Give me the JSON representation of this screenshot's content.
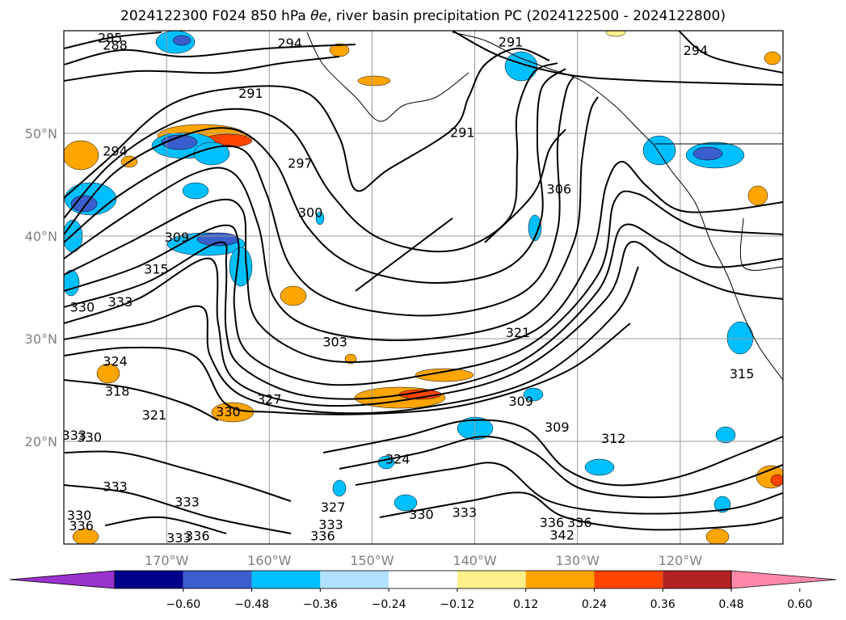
{
  "title_prefix": "2024122300 F024 850 hPa ",
  "title_symbol": "θe",
  "title_suffix": ", river basin precipitation PC (2024122500 - 2024122800)",
  "chart_data": {
    "type": "contour map",
    "field_contoured": "850 hPa theta-e (K)",
    "field_shaded": "river basin precipitation PC",
    "lat_ticks": [
      "50°N",
      "40°N",
      "30°N",
      "20°N"
    ],
    "lon_ticks": [
      "170°W",
      "160°W",
      "150°W",
      "140°W",
      "130°W",
      "120°W"
    ],
    "lat_range": [
      10,
      60
    ],
    "lon_range": [
      -180,
      -110
    ],
    "grid": true,
    "contour_labels": [
      {
        "value": "285",
        "lon": -175.5,
        "lat": 59.2
      },
      {
        "value": "288",
        "lon": -175.0,
        "lat": 58.5
      },
      {
        "value": "294",
        "lon": -158.0,
        "lat": 58.7
      },
      {
        "value": "291",
        "lon": -136.5,
        "lat": 58.8
      },
      {
        "value": "294",
        "lon": -118.5,
        "lat": 58.0
      },
      {
        "value": "291",
        "lon": -161.8,
        "lat": 53.8
      },
      {
        "value": "291",
        "lon": -141.2,
        "lat": 50.0
      },
      {
        "value": "294",
        "lon": -175.0,
        "lat": 48.2
      },
      {
        "value": "297",
        "lon": -157.0,
        "lat": 47.0
      },
      {
        "value": "300",
        "lon": -156.0,
        "lat": 42.2
      },
      {
        "value": "306",
        "lon": -131.8,
        "lat": 44.5
      },
      {
        "value": "309",
        "lon": -169.0,
        "lat": 39.8
      },
      {
        "value": "315",
        "lon": -171.0,
        "lat": 36.7
      },
      {
        "value": "330",
        "lon": -178.2,
        "lat": 33.0
      },
      {
        "value": "333",
        "lon": -174.5,
        "lat": 33.5
      },
      {
        "value": "303",
        "lon": -153.6,
        "lat": 29.6
      },
      {
        "value": "321",
        "lon": -135.8,
        "lat": 30.5
      },
      {
        "value": "315",
        "lon": -114.0,
        "lat": 26.5
      },
      {
        "value": "324",
        "lon": -175.0,
        "lat": 27.7
      },
      {
        "value": "318",
        "lon": -174.8,
        "lat": 24.8
      },
      {
        "value": "327",
        "lon": -160.0,
        "lat": 24.0
      },
      {
        "value": "321",
        "lon": -171.2,
        "lat": 22.5
      },
      {
        "value": "330",
        "lon": -164.0,
        "lat": 22.8
      },
      {
        "value": "309",
        "lon": -135.5,
        "lat": 23.8
      },
      {
        "value": "309",
        "lon": -132.0,
        "lat": 21.3
      },
      {
        "value": "312",
        "lon": -126.5,
        "lat": 20.2
      },
      {
        "value": "330",
        "lon": -177.5,
        "lat": 20.3
      },
      {
        "value": "333",
        "lon": -179.0,
        "lat": 20.5
      },
      {
        "value": "324",
        "lon": -147.5,
        "lat": 18.2
      },
      {
        "value": "333",
        "lon": -175.0,
        "lat": 15.5
      },
      {
        "value": "333",
        "lon": -168.0,
        "lat": 14.0
      },
      {
        "value": "327",
        "lon": -153.8,
        "lat": 13.5
      },
      {
        "value": "330",
        "lon": -178.5,
        "lat": 12.7
      },
      {
        "value": "336",
        "lon": -178.3,
        "lat": 11.7
      },
      {
        "value": "333",
        "lon": -154.0,
        "lat": 11.8
      },
      {
        "value": "336",
        "lon": -154.8,
        "lat": 10.7
      },
      {
        "value": "336",
        "lon": -167.0,
        "lat": 10.7
      },
      {
        "value": "333",
        "lon": -168.8,
        "lat": 10.5
      },
      {
        "value": "330",
        "lon": -145.2,
        "lat": 12.8
      },
      {
        "value": "333",
        "lon": -141.0,
        "lat": 13.0
      },
      {
        "value": "336",
        "lon": -132.5,
        "lat": 12.0
      },
      {
        "value": "336",
        "lon": -129.8,
        "lat": 12.0
      },
      {
        "value": "342",
        "lon": -131.5,
        "lat": 10.8
      }
    ],
    "colorbar": {
      "ticks": [
        "−0.60",
        "−0.48",
        "−0.36",
        "−0.24",
        "−0.12",
        "0.12",
        "0.24",
        "0.36",
        "0.48",
        "0.60"
      ],
      "colors": [
        "#9932cc",
        "#00008b",
        "#3a5fcd",
        "#00bfff",
        "#b0e2ff",
        "#ffffff",
        "#fff08c",
        "#ffa500",
        "#ff4500",
        "#b22222",
        "#ff88aa"
      ],
      "extend": "both"
    }
  }
}
